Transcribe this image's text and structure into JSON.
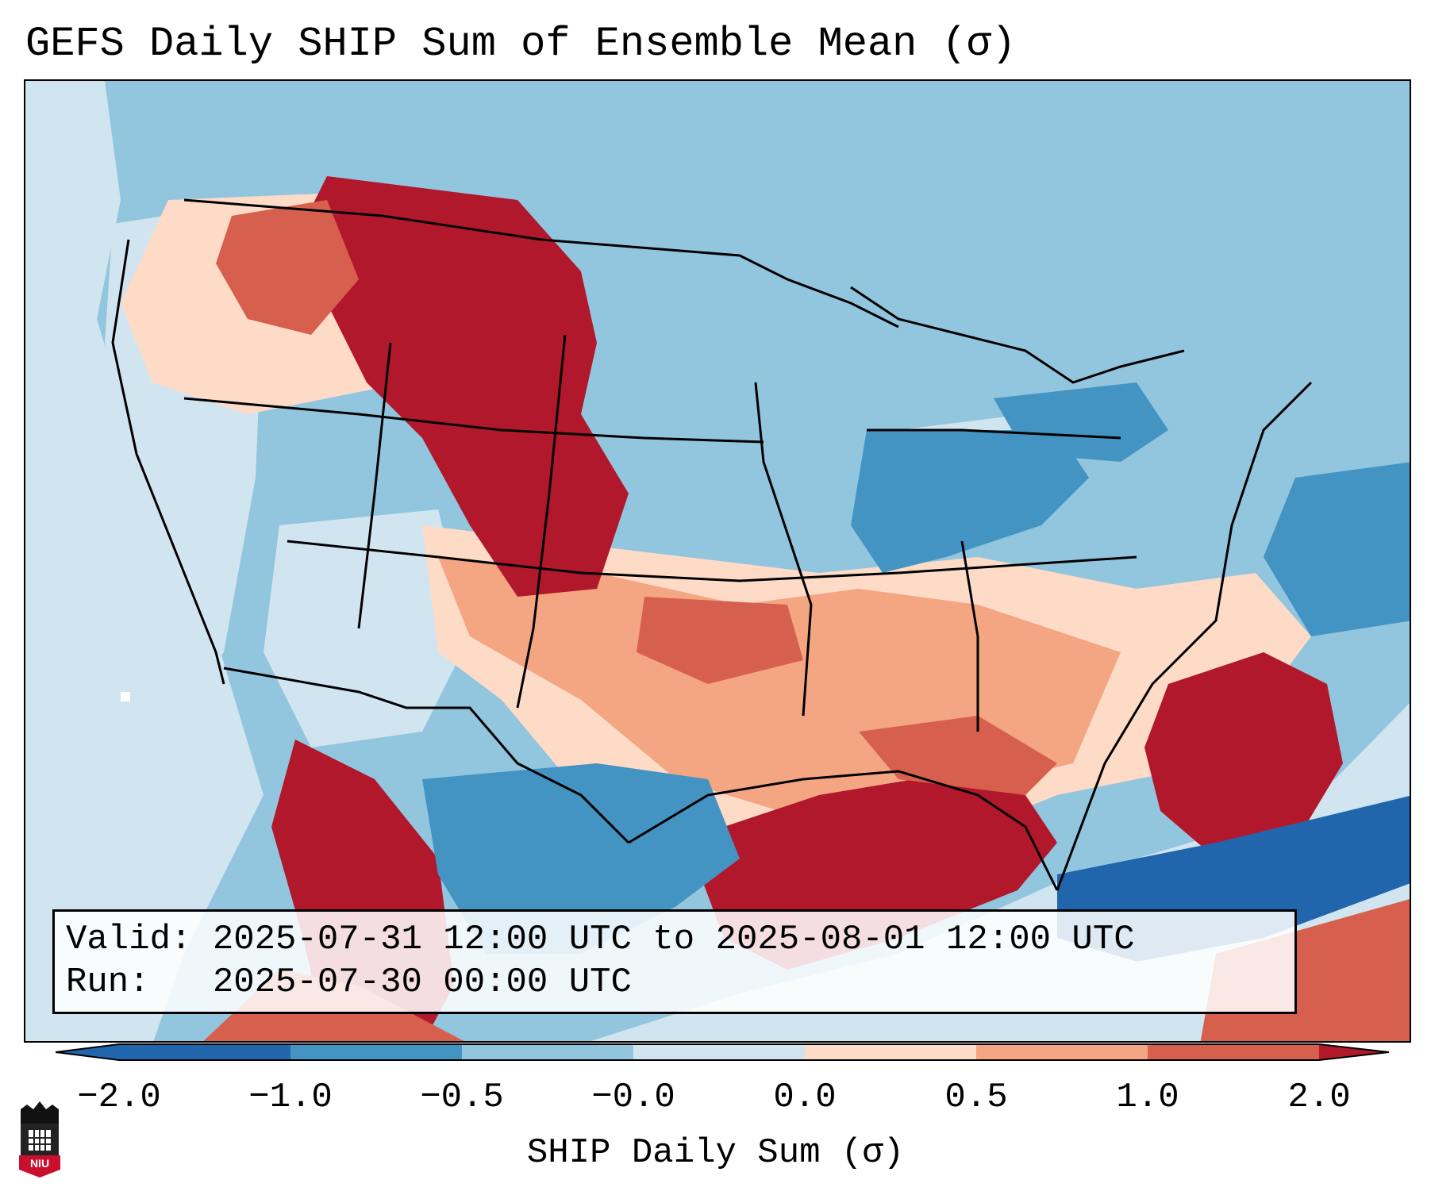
{
  "title": "GEFS Daily SHIP Sum of Ensemble Mean (σ)",
  "info": {
    "valid_label": "Valid:",
    "valid_text": "2025-07-31 12:00 UTC to 2025-08-01 12:00 UTC",
    "run_label": "Run:",
    "run_text": "2025-07-30 00:00 UTC"
  },
  "colorbar": {
    "label": "SHIP Daily Sum (σ)",
    "ticks": [
      "−2.0",
      "−1.0",
      "−0.5",
      "−0.0",
      "0.0",
      "0.5",
      "1.0",
      "2.0"
    ],
    "colors": [
      "#2166ac",
      "#4393c3",
      "#92c5de",
      "#d1e5f0",
      "#fddbc7",
      "#f4a582",
      "#d6604d",
      "#b2182b"
    ],
    "extend": "both"
  },
  "logo": {
    "text": "NIU",
    "color": "#c8102e"
  },
  "map": {
    "region": "Contiguous United States",
    "fields": [
      {
        "name": "northern-rockies-high",
        "level": 2.0
      },
      {
        "name": "central-rockies-high",
        "level": 2.0
      },
      {
        "name": "gulf-coast-high",
        "level": 2.0
      },
      {
        "name": "carolina-offshore-high",
        "level": 2.0
      },
      {
        "name": "mexico-west-high",
        "level": 2.0
      },
      {
        "name": "plains-moderate",
        "level": 1.0
      },
      {
        "name": "midwest-low",
        "level": -1.0
      },
      {
        "name": "caribbean-low",
        "level": -2.0
      }
    ]
  }
}
